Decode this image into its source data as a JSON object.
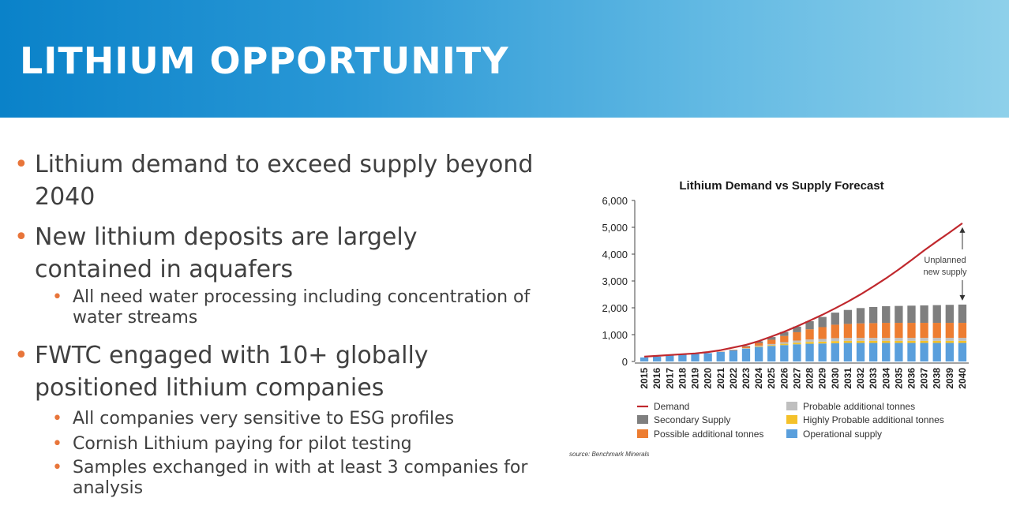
{
  "slide": {
    "title": "LITHIUM OPPORTUNITY",
    "bullets": [
      {
        "text": "Lithium demand to exceed supply beyond 2040"
      },
      {
        "text": "New lithium deposits are largely contained in aquafers",
        "sub": [
          "All need water processing including concentration of water streams"
        ]
      },
      {
        "text": "FWTC engaged with 10+ globally positioned lithium companies",
        "sub": [
          "All companies very sensitive to ESG profiles",
          "Cornish Lithium paying for pilot testing",
          "Samples exchanged in with at least 3 companies for analysis"
        ]
      }
    ]
  },
  "colors": {
    "header_start": "#0a82c9",
    "header_end": "#8ed0ea",
    "bullet": "#e8753a",
    "demand": "#c0282d",
    "operational": "#5a9fdc",
    "highly_probable": "#f4c12a",
    "possible": "#ed7d31",
    "probable": "#bfbfbf",
    "secondary": "#7f7f7f"
  },
  "chart_data": {
    "type": "bar",
    "title": "Lithium Demand vs Supply Forecast",
    "source": "source: Benchmark Minerals",
    "annotation": "Unplanned new supply",
    "stacked": true,
    "ylim": [
      0,
      6000
    ],
    "yticks": [
      "0",
      "1,000",
      "2,000",
      "3,000",
      "4,000",
      "5,000",
      "6,000"
    ],
    "categories": [
      "2015",
      "2016",
      "2017",
      "2018",
      "2019",
      "2020",
      "2021",
      "2022",
      "2023",
      "2024",
      "2025",
      "2026",
      "2027",
      "2028",
      "2029",
      "2030",
      "2031",
      "2032",
      "2033",
      "2034",
      "2035",
      "2036",
      "2037",
      "2038",
      "2039",
      "2040"
    ],
    "legend_position": "bottom",
    "legend": [
      "Demand",
      "Probable additional tonnes",
      "Secondary Supply",
      "Highly Probable additional tonnes",
      "Possible additional tonnes",
      "Operational supply"
    ],
    "series": [
      {
        "name": "Operational supply",
        "key": "operational",
        "values": [
          150,
          180,
          220,
          250,
          280,
          310,
          360,
          420,
          480,
          540,
          580,
          610,
          640,
          660,
          670,
          680,
          690,
          690,
          690,
          690,
          690,
          690,
          690,
          690,
          690,
          690
        ]
      },
      {
        "name": "Highly Probable additional tonnes",
        "key": "highly_probable",
        "values": [
          0,
          0,
          0,
          0,
          0,
          0,
          0,
          0,
          10,
          20,
          30,
          50,
          60,
          70,
          70,
          80,
          80,
          80,
          80,
          80,
          80,
          80,
          80,
          80,
          80,
          80
        ]
      },
      {
        "name": "Probable additional tonnes",
        "key": "probable",
        "values": [
          0,
          0,
          0,
          0,
          0,
          0,
          0,
          0,
          10,
          30,
          40,
          60,
          80,
          90,
          100,
          110,
          110,
          110,
          110,
          110,
          110,
          110,
          110,
          110,
          110,
          110
        ]
      },
      {
        "name": "Possible additional tonnes",
        "key": "possible",
        "values": [
          0,
          0,
          0,
          0,
          0,
          0,
          10,
          20,
          50,
          100,
          160,
          230,
          310,
          380,
          440,
          500,
          520,
          540,
          550,
          560,
          560,
          560,
          560,
          560,
          560,
          560
        ]
      },
      {
        "name": "Secondary Supply",
        "key": "secondary",
        "values": [
          0,
          0,
          0,
          0,
          0,
          0,
          0,
          0,
          30,
          60,
          100,
          150,
          210,
          300,
          380,
          450,
          520,
          570,
          600,
          620,
          630,
          640,
          650,
          660,
          670,
          680
        ]
      },
      {
        "name": "Demand",
        "key": "demand",
        "type": "line",
        "values": [
          180,
          210,
          240,
          270,
          300,
          350,
          420,
          520,
          620,
          760,
          930,
          1110,
          1310,
          1520,
          1740,
          1980,
          2230,
          2500,
          2790,
          3100,
          3430,
          3780,
          4140,
          4480,
          4810,
          5150
        ]
      }
    ]
  }
}
